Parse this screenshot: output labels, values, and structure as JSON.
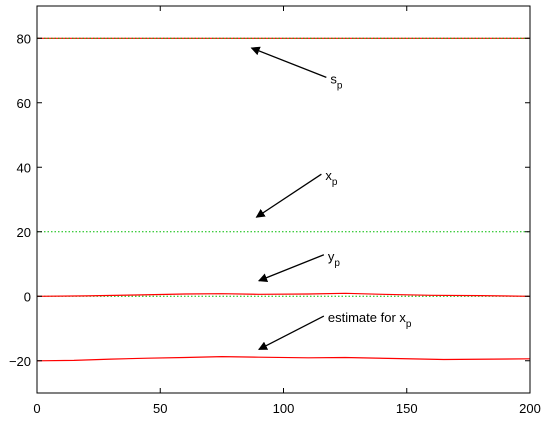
{
  "chart_data": {
    "type": "line",
    "title": "",
    "xlabel": "",
    "ylabel": "",
    "xlim": [
      0,
      200
    ],
    "ylim": [
      -30,
      90
    ],
    "xticks": [
      0,
      50,
      100,
      150,
      200
    ],
    "yticks": [
      -20,
      0,
      20,
      40,
      60,
      80
    ],
    "grid": false,
    "series": [
      {
        "color": "#ff0000",
        "style": "solid",
        "x": [
          0,
          200
        ],
        "y": [
          80,
          80
        ]
      },
      {
        "color": "#00bb00",
        "style": "dotted",
        "x": [
          0,
          200
        ],
        "y": [
          80,
          80
        ]
      },
      {
        "color": "#00bb00",
        "style": "dotted",
        "x": [
          0,
          200
        ],
        "y": [
          20,
          20
        ]
      },
      {
        "color": "#00bb00",
        "style": "dotted",
        "x": [
          0,
          200
        ],
        "y": [
          0,
          0
        ]
      },
      {
        "color": "#ff0000",
        "style": "solid",
        "x": [
          0,
          20,
          40,
          60,
          75,
          90,
          110,
          125,
          140,
          160,
          180,
          200
        ],
        "y": [
          0,
          0.1,
          0.4,
          0.7,
          0.8,
          0.6,
          0.7,
          0.9,
          0.6,
          0.3,
          0.2,
          0
        ]
      },
      {
        "color": "#ff0000",
        "style": "solid",
        "x": [
          0,
          15,
          30,
          45,
          60,
          75,
          90,
          110,
          125,
          145,
          165,
          185,
          200
        ],
        "y": [
          -20,
          -19.9,
          -19.5,
          -19.2,
          -19.0,
          -18.7,
          -18.9,
          -19.1,
          -19.0,
          -19.3,
          -19.6,
          -19.5,
          -19.4
        ]
      }
    ],
    "annotations": [
      {
        "text": "s",
        "sub": "p",
        "x": 119,
        "y": 66,
        "arrow_to": [
          87,
          77
        ]
      },
      {
        "text": "x",
        "sub": "p",
        "x": 117,
        "y": 36,
        "arrow_to": [
          89,
          24.5
        ]
      },
      {
        "text": "y",
        "sub": "p",
        "x": 118,
        "y": 11,
        "arrow_to": [
          90,
          4.8
        ]
      },
      {
        "text": "estimate for x",
        "sub": "p",
        "x": 118,
        "y": -8,
        "arrow_to": [
          90,
          -16.5
        ]
      }
    ]
  }
}
